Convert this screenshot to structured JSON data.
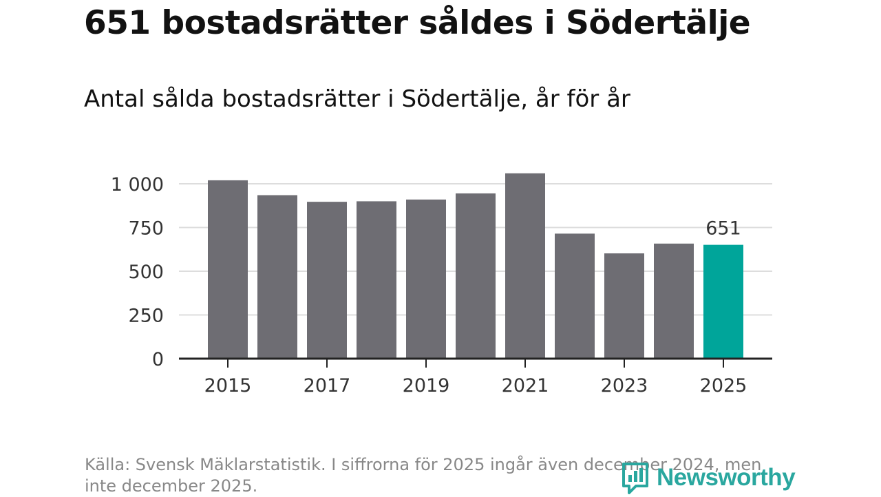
{
  "headline": "651 bostadsrätter såldes i Södertälje",
  "chart_data": {
    "type": "bar",
    "title": "Antal sålda bostadsrätter i Södertälje, år för år",
    "xlabel": "",
    "ylabel": "",
    "categories": [
      "2015",
      "2016",
      "2017",
      "2018",
      "2019",
      "2020",
      "2021",
      "2022",
      "2023",
      "2024",
      "2025"
    ],
    "x_tick_labels": [
      "2015",
      "2017",
      "2019",
      "2021",
      "2023",
      "2025"
    ],
    "values": [
      1020,
      935,
      897,
      900,
      910,
      945,
      1060,
      715,
      602,
      658,
      651
    ],
    "ylim": [
      0,
      1000
    ],
    "y_ticks": [
      0,
      250,
      500,
      750,
      1000
    ],
    "y_tick_labels": [
      "0",
      "250",
      "500",
      "750",
      "1 000"
    ],
    "highlight": {
      "category": "2025",
      "label": "651"
    },
    "grid": true,
    "colors": {
      "bar": "#6e6d73",
      "highlight": "#00a59a",
      "grid": "#dddddd",
      "axis": "#222222"
    }
  },
  "source": "Källa: Svensk Mäklarstatistik. I siffrorna för 2025 ingår även december 2024, men inte december 2025.",
  "logo": {
    "name": "Newsworthy",
    "icon": "newsworthy-logo-icon",
    "color": "#2aa79f"
  }
}
